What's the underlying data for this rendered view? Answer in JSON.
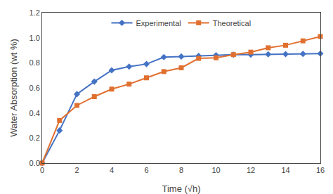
{
  "chart_data": {
    "type": "line",
    "x": [
      0,
      1,
      2,
      3,
      4,
      5,
      6,
      7,
      8,
      9,
      10,
      11,
      12,
      13,
      14,
      15,
      16
    ],
    "series": [
      {
        "name": "Experimental",
        "color": "#4472c4",
        "marker": "diamond",
        "values": [
          0,
          0.26,
          0.55,
          0.65,
          0.74,
          0.77,
          0.79,
          0.845,
          0.85,
          0.855,
          0.86,
          0.865,
          0.865,
          0.868,
          0.869,
          0.871,
          0.873
        ]
      },
      {
        "name": "Theoretical",
        "color": "#e07030",
        "marker": "square",
        "values": [
          0,
          0.34,
          0.46,
          0.53,
          0.59,
          0.63,
          0.68,
          0.73,
          0.76,
          0.835,
          0.84,
          0.865,
          0.885,
          0.92,
          0.94,
          0.975,
          1.01
        ]
      }
    ],
    "xlabel": "Time (√h)",
    "ylabel": "Water Absorption (wt %)",
    "xlim": [
      0,
      16
    ],
    "ylim": [
      0,
      1.2
    ],
    "xticks": [
      0,
      2,
      4,
      6,
      8,
      10,
      12,
      14,
      16
    ],
    "yticks": [
      {
        "value": 0,
        "label": "0.0"
      },
      0.2,
      0.4,
      0.6,
      0.8,
      {
        "value": 1,
        "label": "1.0"
      },
      1.2
    ],
    "legend": "upper center",
    "grid": false
  }
}
